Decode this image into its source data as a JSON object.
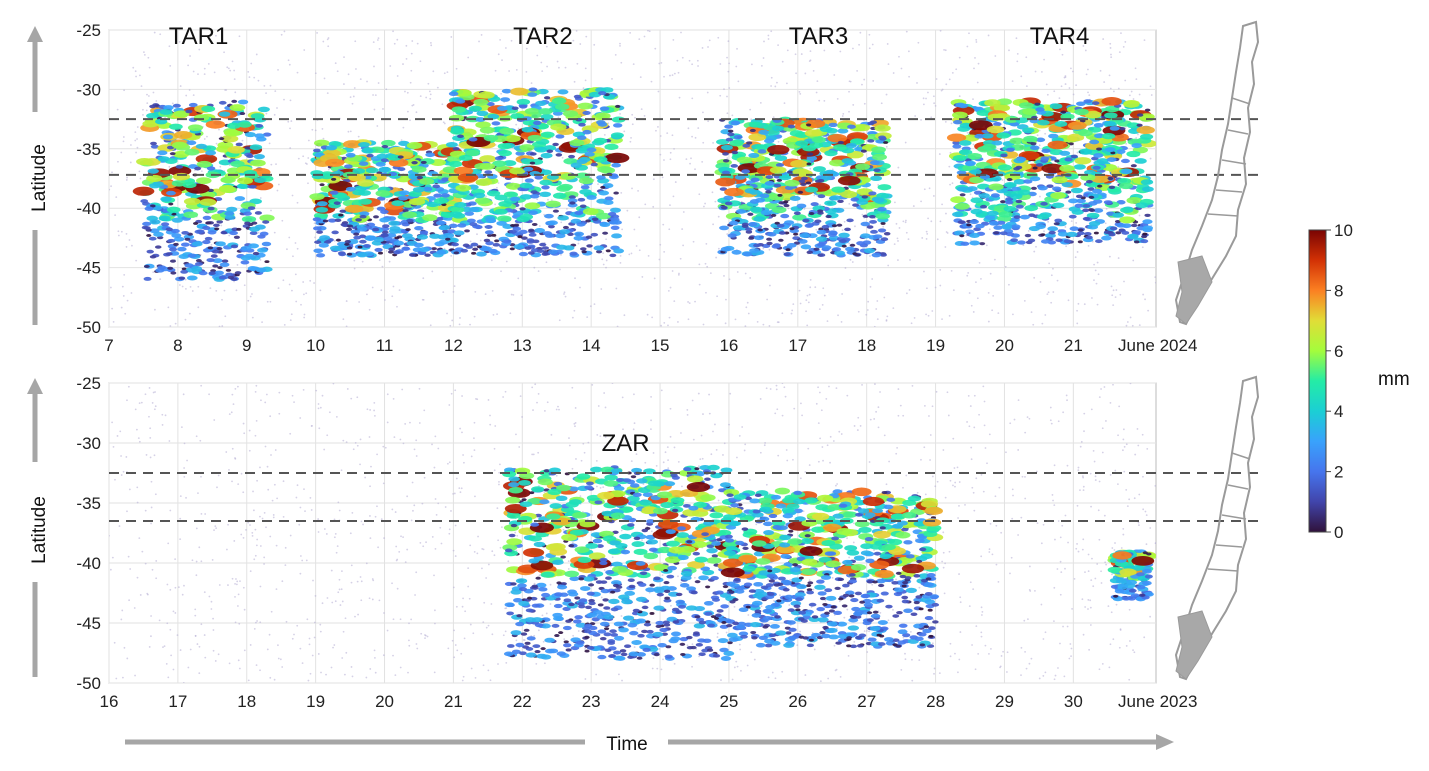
{
  "chart_data": [
    {
      "type": "scatter",
      "panel": "top",
      "x_tick_labels": [
        "7",
        "8",
        "9",
        "10",
        "11",
        "12",
        "13",
        "14",
        "15",
        "16",
        "17",
        "18",
        "19",
        "20",
        "21"
      ],
      "x_end_label": "June 2024",
      "xlim": [
        7,
        22.2
      ],
      "ylabel": "Latitude",
      "y_tick_labels": [
        "-25",
        "-30",
        "-35",
        "-40",
        "-45",
        "-50"
      ],
      "ylim": [
        -50,
        -25
      ],
      "reference_lines": [
        -32.5,
        -37.2
      ],
      "annotations": [
        {
          "text": "TAR1",
          "x": 8.3,
          "y": -25.5
        },
        {
          "text": "TAR2",
          "x": 13.3,
          "y": -25.5
        },
        {
          "text": "TAR3",
          "x": 17.3,
          "y": -25.5
        },
        {
          "text": "TAR4",
          "x": 20.8,
          "y": -25.5
        }
      ],
      "events": [
        {
          "x0": 7.5,
          "x1": 9.3,
          "lat_top": -31,
          "lat_bottom": -46
        },
        {
          "x0": 10,
          "x1": 12,
          "lat_top": -34.5,
          "lat_bottom": -44
        },
        {
          "x0": 12,
          "x1": 14.4,
          "lat_top": -30,
          "lat_bottom": -44
        },
        {
          "x0": 15.9,
          "x1": 18.3,
          "lat_top": -32.5,
          "lat_bottom": -44
        },
        {
          "x0": 19.3,
          "x1": 22.1,
          "lat_top": -31,
          "lat_bottom": -43
        }
      ],
      "grid": true
    },
    {
      "type": "scatter",
      "panel": "bottom",
      "x_tick_labels": [
        "16",
        "17",
        "18",
        "19",
        "20",
        "21",
        "22",
        "23",
        "24",
        "25",
        "26",
        "27",
        "28",
        "29",
        "30"
      ],
      "x_end_label": "June 2023",
      "xlim": [
        16,
        31.2
      ],
      "ylabel": "Latitude",
      "y_tick_labels": [
        "-25",
        "-30",
        "-35",
        "-40",
        "-45",
        "-50"
      ],
      "ylim": [
        -50,
        -25
      ],
      "reference_lines": [
        -32.5,
        -36.5
      ],
      "annotations": [
        {
          "text": "ZAR",
          "x": 23.5,
          "y": -30
        }
      ],
      "events": [
        {
          "x0": 21.8,
          "x1": 25,
          "lat_top": -32,
          "lat_bottom": -48
        },
        {
          "x0": 25,
          "x1": 28,
          "lat_top": -34,
          "lat_bottom": -47
        },
        {
          "x0": 30.6,
          "x1": 31.1,
          "lat_top": -39,
          "lat_bottom": -43
        }
      ],
      "grid": true
    }
  ],
  "shared_xlabel": "Time",
  "colorbar": {
    "label": "mm",
    "ticks": [
      "10",
      "8",
      "6",
      "4",
      "2",
      "0"
    ],
    "range": [
      0,
      10
    ],
    "colormap": "turbo"
  },
  "colors": {
    "axis_arrow": "#a6a6a6",
    "reference_line": "#555555",
    "map_outline": "#9a9a9a"
  }
}
